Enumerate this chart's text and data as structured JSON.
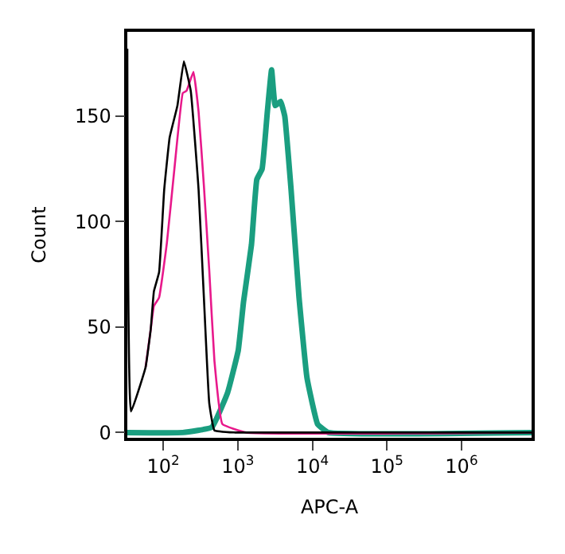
{
  "chart_data": {
    "type": "line",
    "xlabel": "APC-A",
    "ylabel": "Count",
    "log": "x",
    "marker": "none",
    "line_style": "solid",
    "xlim": [
      33,
      8700000
    ],
    "ylim": [
      -2.5,
      190
    ],
    "xticks": [
      {
        "value": 100,
        "label": "10$^{2}$"
      },
      {
        "value": 1000,
        "label": "10$^{3}$"
      },
      {
        "value": 10000,
        "label": "10$^{4}$"
      },
      {
        "value": 100000,
        "label": "10$^{5}$"
      },
      {
        "value": 1000000,
        "label": "10$^{6}$"
      }
    ],
    "yticks": [
      0,
      50,
      100,
      150
    ],
    "series": [
      {
        "color": "#1a9e80",
        "x": [
          33,
          183,
          448,
          731,
          1014,
          1194,
          1525,
          1799,
          2118,
          2490,
          2840,
          3178,
          3750,
          4262,
          5186,
          6623,
          8465,
          11750,
          16330,
          8700000
        ],
        "values": [
          0,
          0,
          2.5,
          19,
          39,
          62,
          89,
          120,
          125,
          152,
          172,
          155,
          157,
          150,
          115,
          64,
          26,
          4,
          0,
          0
        ]
      },
      {
        "color": "#e8198b",
        "x": [
          58,
          68,
          75,
          88,
          112,
          143,
          183,
          205,
          254,
          298,
          351,
          414,
          486,
          622,
          1297,
          8700000
        ],
        "values": [
          31,
          49,
          60,
          64,
          90,
          127,
          161,
          162,
          171,
          152,
          117,
          77,
          34,
          4,
          0,
          0
        ]
      },
      {
        "color": "#000000",
        "x": [
          33,
          37,
          58,
          68,
          75,
          88,
          103,
          122,
          155,
          189,
          234,
          298,
          351,
          414,
          486,
          920,
          8700000
        ],
        "values": [
          182,
          10,
          31,
          49,
          67,
          76,
          115,
          140,
          155,
          176,
          162,
          115,
          64,
          14,
          1,
          0,
          0
        ]
      }
    ]
  }
}
